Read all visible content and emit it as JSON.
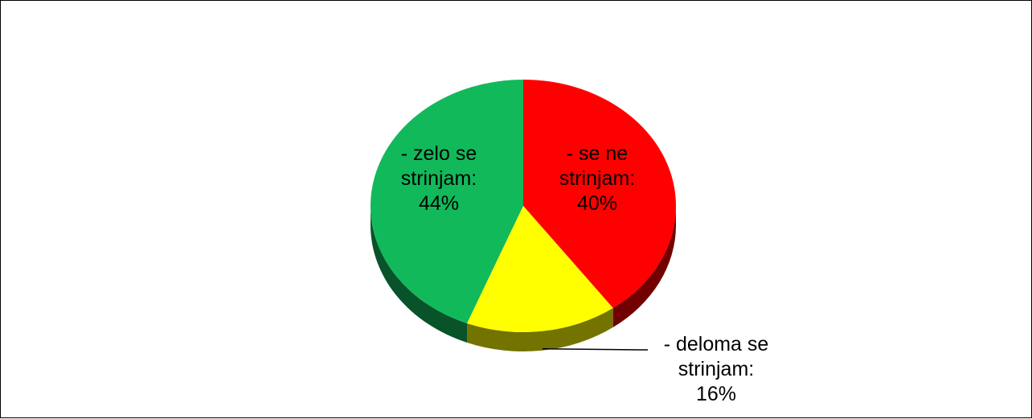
{
  "chart_data": {
    "type": "pie",
    "categories": [
      "- se ne strinjam:",
      "- deloma se strinjam:",
      "- zelo se strinjam:"
    ],
    "values": [
      40,
      16,
      44
    ],
    "value_labels": [
      "40%",
      "16%",
      "44%"
    ],
    "colors": [
      "#ff0000",
      "#ffff00",
      "#12b95a"
    ]
  }
}
